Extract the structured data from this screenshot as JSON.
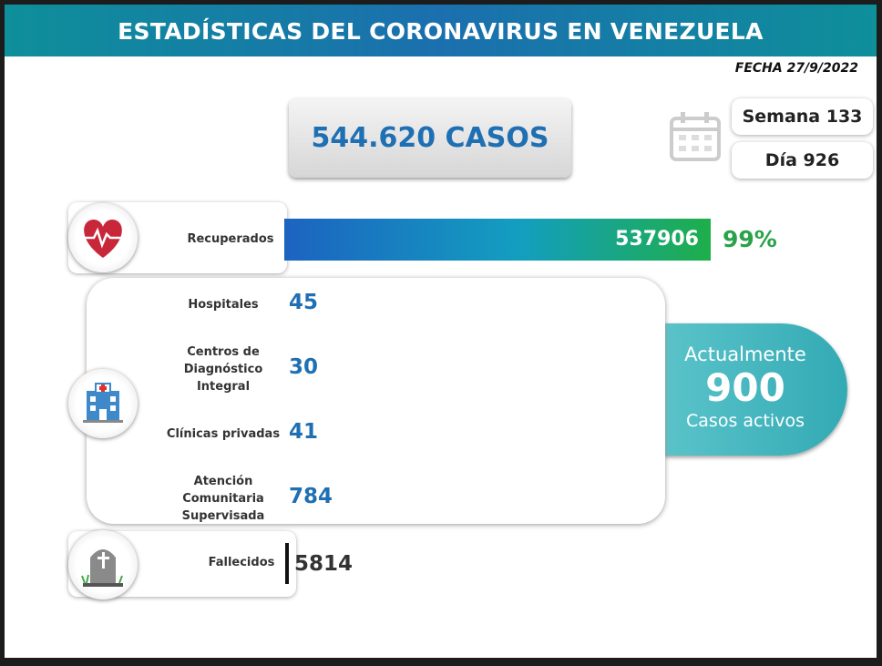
{
  "header": {
    "title": "ESTADÍSTICAS DEL CORONAVIRUS EN VENEZUELA",
    "date": "FECHA 27/9/2022"
  },
  "total": "544.620 CASOS",
  "week": "Semana 133",
  "day": "Día 926",
  "recovered": {
    "label": "Recuperados",
    "value": 537906,
    "percent": "99%"
  },
  "facilities": [
    {
      "label": "Hospitales",
      "value": 45
    },
    {
      "label": "Centros de Diagnóstico Integral",
      "value": 30
    },
    {
      "label": "Clínicas privadas",
      "value": 41
    },
    {
      "label": "Atención Comunitaria Supervisada",
      "value": 784
    }
  ],
  "active": {
    "prefix": "Actualmente",
    "value": 900,
    "suffix": "Casos activos"
  },
  "deaths": {
    "label": "Fallecidos",
    "value": 5814
  }
}
